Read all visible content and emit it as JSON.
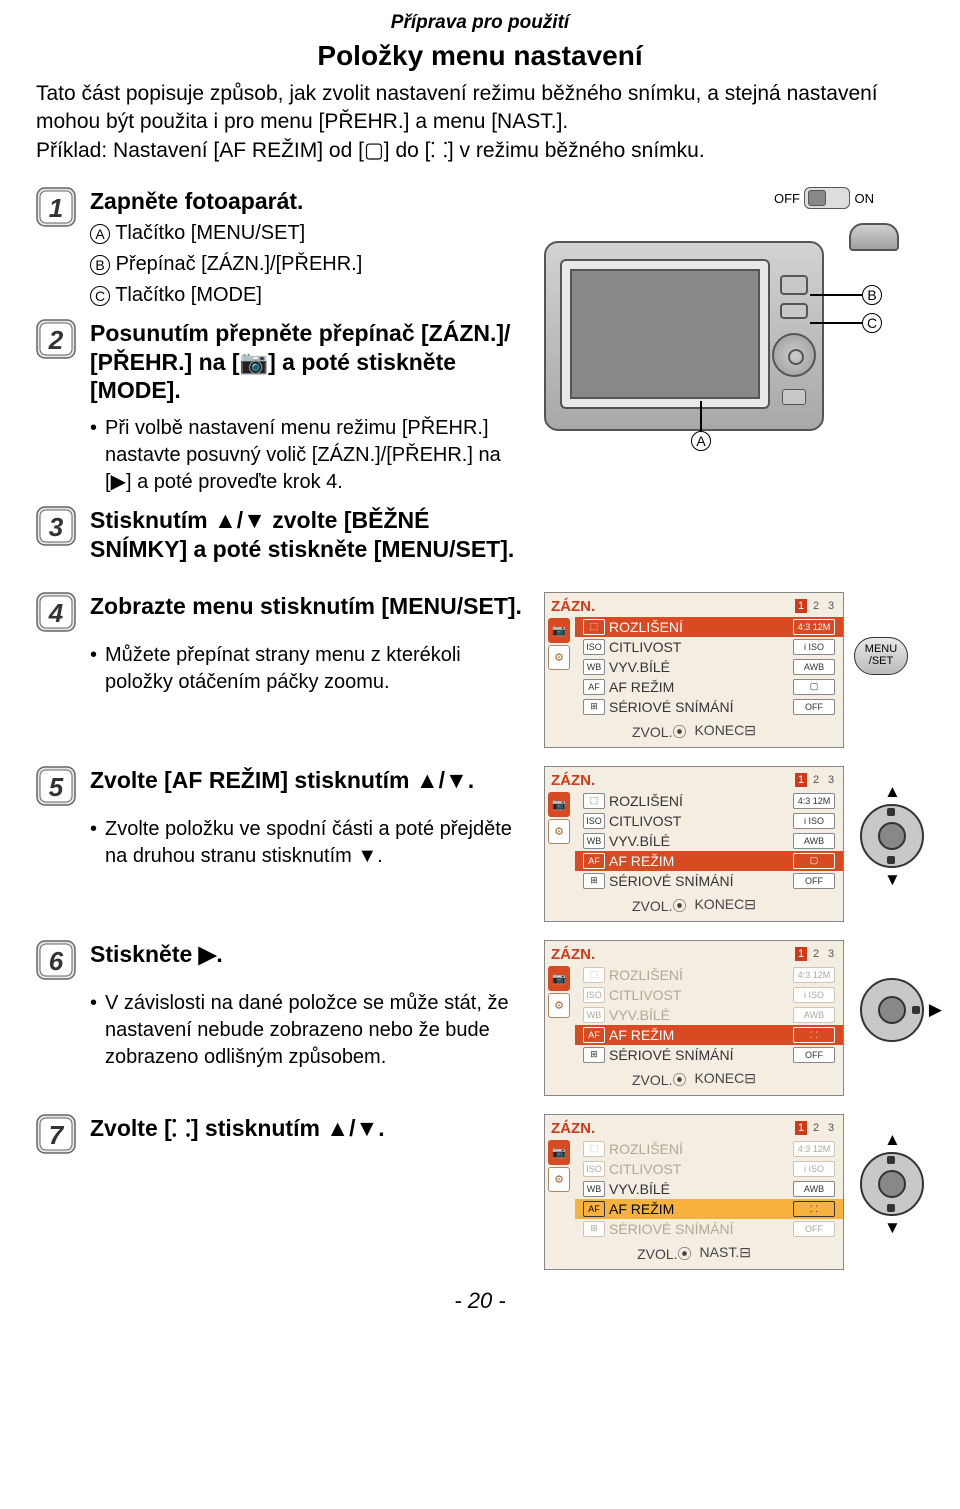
{
  "header": {
    "section": "Příprava pro použití",
    "title": "Položky menu nastavení"
  },
  "intro": "Tato část popisuje způsob, jak zvolit nastavení režimu běžného snímku, a stejná nastavení mohou být použita i pro menu [PŘEHR.] a menu [NAST.].\nPříklad: Nastavení [AF REŽIM] od [▢] do [⸬] v režimu běžného snímku.",
  "step1": {
    "title": "Zapněte fotoaparát.",
    "a": "Tlačítko [MENU/SET]",
    "b": "Přepínač [ZÁZN.]/[PŘEHR.]",
    "c": "Tlačítko [MODE]"
  },
  "step2": {
    "title_a": "Posunutím přepněte přepínač [ZÁZN.]/",
    "title_b": "[PŘEHR.] na [📷] a poté stiskněte [MODE].",
    "bullet": "Při volbě nastavení menu režimu [PŘEHR.] nastavte posuvný volič [ZÁZN.]/[PŘEHR.] na [▶] a poté proveďte krok 4."
  },
  "step3": {
    "title": "Stisknutím ▲/▼ zvolte [BĚŽNÉ SNÍMKY] a poté stiskněte [MENU/SET]."
  },
  "step4": {
    "title": "Zobrazte menu stisknutím [MENU/SET].",
    "bullet": "Můžete přepínat strany menu z kterékoli položky otáčením páčky zoomu."
  },
  "step5": {
    "title": "Zvolte [AF REŽIM] stisknutím ▲/▼.",
    "bullet": "Zvolte položku ve spodní části a poté přejděte na druhou stranu stisknutím ▼."
  },
  "step6": {
    "title": "Stiskněte ▶.",
    "bullet": "V závislosti na dané položce se může stát, že nastavení nebude zobrazeno nebo že bude zobrazeno odlišným způsobem."
  },
  "step7": {
    "title": "Zvolte [⸬] stisknutím ▲/▼."
  },
  "camera_labels": {
    "off": "OFF",
    "on": "ON",
    "A": "A",
    "B": "B",
    "C": "C"
  },
  "menuset": {
    "l1": "MENU",
    "l2": "/SET"
  },
  "screenshots": {
    "tab": "ZÁZN.",
    "pager": [
      "1",
      "2",
      "3"
    ],
    "rows_def": [
      {
        "ico": "⬚",
        "lab": "ROZLIŠENÍ",
        "val": "4:3 12M"
      },
      {
        "ico": "ISO",
        "lab": "CITLIVOST",
        "val": "i ISO"
      },
      {
        "ico": "WB",
        "lab": "VYV.BÍLÉ",
        "val": "AWB"
      },
      {
        "ico": "AF",
        "lab": "AF REŽIM",
        "val": "▢"
      },
      {
        "ico": "⊞",
        "lab": "SÉRIOVÉ SNÍMÁNÍ",
        "val": "OFF"
      }
    ],
    "footer_left": "ZVOL.⦿",
    "footer_right_konec": "KONEC⊟",
    "footer_right_nast": "NAST.⊟",
    "s4_highlight": 0,
    "s5_highlight": 3,
    "s6_highlight": 3,
    "s7_highlight": 3,
    "s6_dim_rows": [
      0,
      1,
      2
    ],
    "s7_dim_rows": [
      0,
      1
    ],
    "s7_row4_dim": true,
    "s6_val3": "⸬",
    "s7_val3": "⸬",
    "highlight_color_row": "#d84a22",
    "highlight_color_yellow": "#f6b23c",
    "screenshot_bg": "#f4ede2"
  },
  "pagenum": "- 20 -"
}
